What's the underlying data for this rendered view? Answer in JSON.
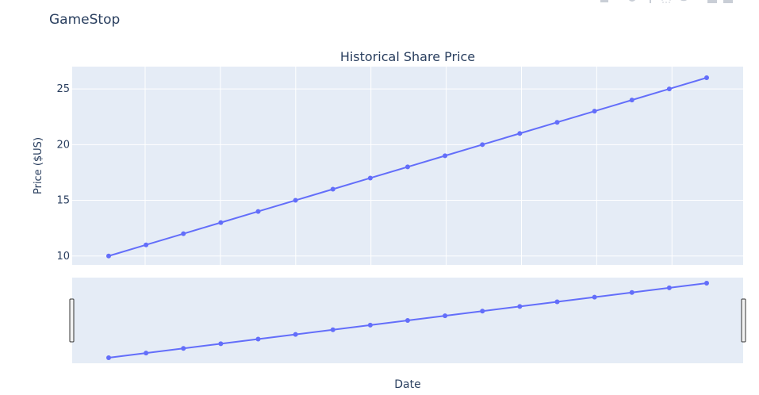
{
  "page": {
    "title": "GameStop"
  },
  "toolbar": {
    "icons": [
      "camera-icon",
      "zoom-icon",
      "pan-icon",
      "box-select-icon",
      "lasso-icon",
      "zoom-in-icon",
      "zoom-out-icon",
      "autoscale-icon",
      "reset-axes-icon"
    ]
  },
  "colors": {
    "plot_bg": "#e5ecf6",
    "line": "#636efa",
    "grid": "#ffffff",
    "text": "#2a3f5f"
  },
  "chart_data": {
    "type": "line",
    "title": "Historical Share Price",
    "xlabel": "Date",
    "ylabel": "Price ($US)",
    "y_ticks": [
      10,
      15,
      20,
      25
    ],
    "ylim": [
      9.2,
      27.0
    ],
    "x": [
      0,
      1,
      2,
      3,
      4,
      5,
      6,
      7,
      8,
      9,
      10,
      11,
      12,
      13,
      14,
      15,
      16
    ],
    "values": [
      10,
      11,
      12,
      13,
      14,
      15,
      16,
      17,
      18,
      19,
      20,
      21,
      22,
      23,
      24,
      25,
      26
    ],
    "grid": true,
    "mode": "lines+markers",
    "rangeslider": true
  }
}
